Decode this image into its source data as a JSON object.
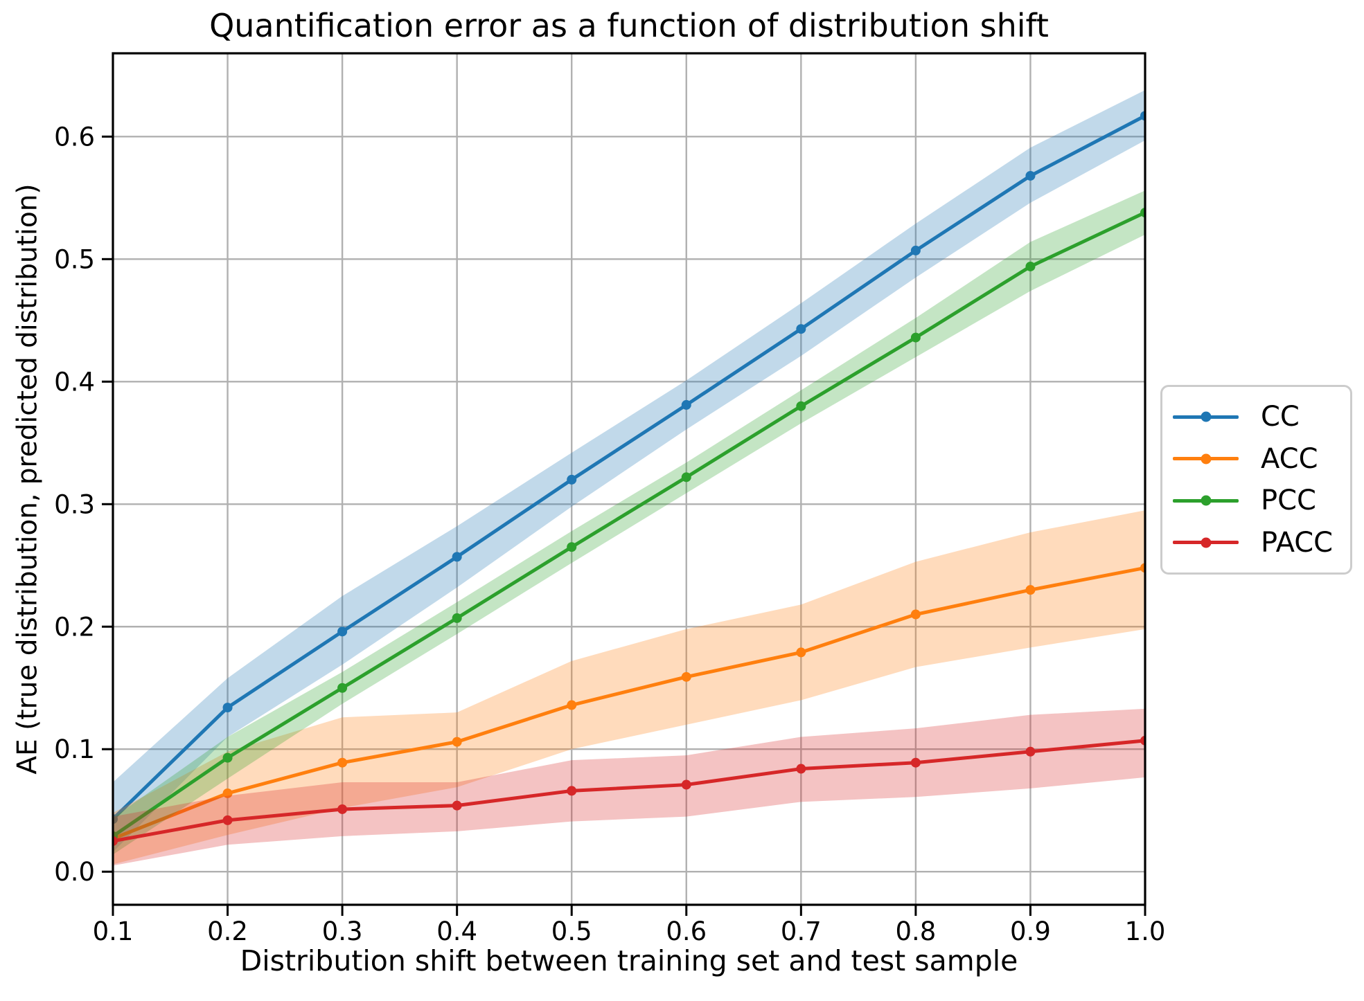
{
  "chart_data": {
    "type": "line",
    "title": "Quantification error as a function of distribution shift",
    "xlabel": "Distribution shift between training set and test sample",
    "ylabel": "AE (true distribution, predicted distribution)",
    "x": [
      0.1,
      0.2,
      0.3,
      0.4,
      0.5,
      0.6,
      0.7,
      0.8,
      0.9,
      1.0
    ],
    "xlim": [
      0.1,
      1.0
    ],
    "ylim": [
      -0.027,
      0.668
    ],
    "xticks": {
      "values": [
        0.1,
        0.2,
        0.3,
        0.4,
        0.5,
        0.6,
        0.7,
        0.8,
        0.9,
        1.0
      ],
      "labels": [
        "0.1",
        "0.2",
        "0.3",
        "0.4",
        "0.5",
        "0.6",
        "0.7",
        "0.8",
        "0.9",
        "1.0"
      ]
    },
    "yticks": {
      "values": [
        0.0,
        0.1,
        0.2,
        0.3,
        0.4,
        0.5,
        0.6
      ],
      "labels": [
        "0.0",
        "0.1",
        "0.2",
        "0.3",
        "0.4",
        "0.5",
        "0.6"
      ]
    },
    "grid": true,
    "grid_color": "#b0b0b0",
    "background": "#ffffff",
    "legend_position": "outside center-right",
    "band_opacity": 0.28,
    "marker": "circle",
    "series": [
      {
        "name": "CC",
        "color": "#1f77b4",
        "values": [
          0.043,
          0.134,
          0.196,
          0.257,
          0.32,
          0.381,
          0.443,
          0.507,
          0.568,
          0.617
        ],
        "band_lower": [
          0.016,
          0.11,
          0.169,
          0.232,
          0.298,
          0.361,
          0.421,
          0.485,
          0.546,
          0.597
        ],
        "band_upper": [
          0.073,
          0.158,
          0.225,
          0.282,
          0.342,
          0.401,
          0.464,
          0.529,
          0.591,
          0.638
        ]
      },
      {
        "name": "ACC",
        "color": "#ff7f0e",
        "values": [
          0.027,
          0.064,
          0.089,
          0.106,
          0.136,
          0.159,
          0.179,
          0.21,
          0.23,
          0.248
        ],
        "band_lower": [
          0.006,
          0.03,
          0.052,
          0.069,
          0.1,
          0.12,
          0.14,
          0.167,
          0.183,
          0.198
        ],
        "band_upper": [
          0.048,
          0.098,
          0.126,
          0.13,
          0.172,
          0.198,
          0.218,
          0.253,
          0.277,
          0.295
        ]
      },
      {
        "name": "PCC",
        "color": "#2ca02c",
        "values": [
          0.029,
          0.093,
          0.15,
          0.207,
          0.265,
          0.322,
          0.38,
          0.436,
          0.494,
          0.538
        ],
        "band_lower": [
          0.014,
          0.076,
          0.137,
          0.194,
          0.252,
          0.309,
          0.366,
          0.42,
          0.474,
          0.52
        ],
        "band_upper": [
          0.044,
          0.11,
          0.163,
          0.22,
          0.278,
          0.334,
          0.393,
          0.452,
          0.514,
          0.556
        ]
      },
      {
        "name": "PACC",
        "color": "#d62728",
        "values": [
          0.025,
          0.042,
          0.051,
          0.054,
          0.066,
          0.071,
          0.084,
          0.089,
          0.098,
          0.107
        ],
        "band_lower": [
          0.005,
          0.022,
          0.029,
          0.033,
          0.041,
          0.045,
          0.057,
          0.061,
          0.068,
          0.077
        ],
        "band_upper": [
          0.045,
          0.062,
          0.073,
          0.073,
          0.091,
          0.095,
          0.11,
          0.117,
          0.128,
          0.133
        ]
      }
    ]
  }
}
